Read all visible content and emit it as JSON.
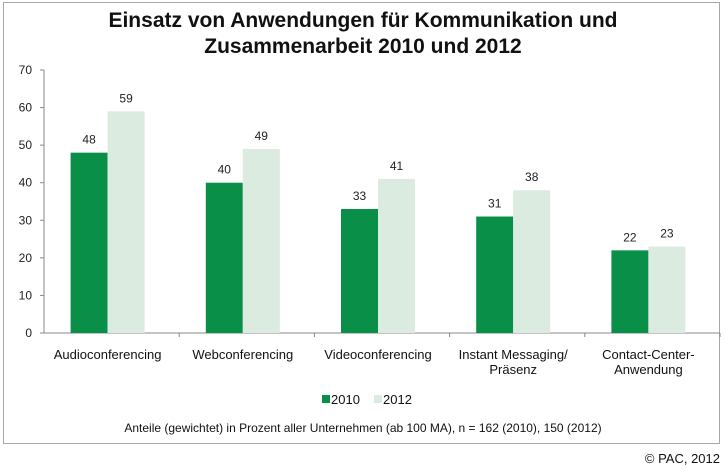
{
  "chart_data": {
    "type": "bar",
    "title": "Einsatz von Anwendungen für Kommunikation und Zusammenarbeit 2010 und 2012",
    "title_lines": [
      "Einsatz von Anwendungen für Kommunikation und",
      "Zusammenarbeit 2010 und 2012"
    ],
    "categories": [
      [
        "Audioconferencing"
      ],
      [
        "Webconferencing"
      ],
      [
        "Videoconferencing"
      ],
      [
        "Instant Messaging/",
        "Präsenz"
      ],
      [
        "Contact-Center-",
        "Anwendung"
      ]
    ],
    "series": [
      {
        "name": "2010",
        "values": [
          48,
          40,
          33,
          31,
          22
        ],
        "color": "#0a8f48"
      },
      {
        "name": "2012",
        "values": [
          59,
          49,
          41,
          38,
          23
        ],
        "color": "#dcebdf"
      }
    ],
    "ylim": [
      0,
      70
    ],
    "yticks": [
      0,
      10,
      20,
      30,
      40,
      50,
      60,
      70
    ],
    "grid": false,
    "legend": "bottom-center",
    "note": "Anteile (gewichtet) in Prozent aller Unternehmen (ab 100 MA), n = 162 (2010), 150 (2012)",
    "source": "© PAC, 2012"
  }
}
